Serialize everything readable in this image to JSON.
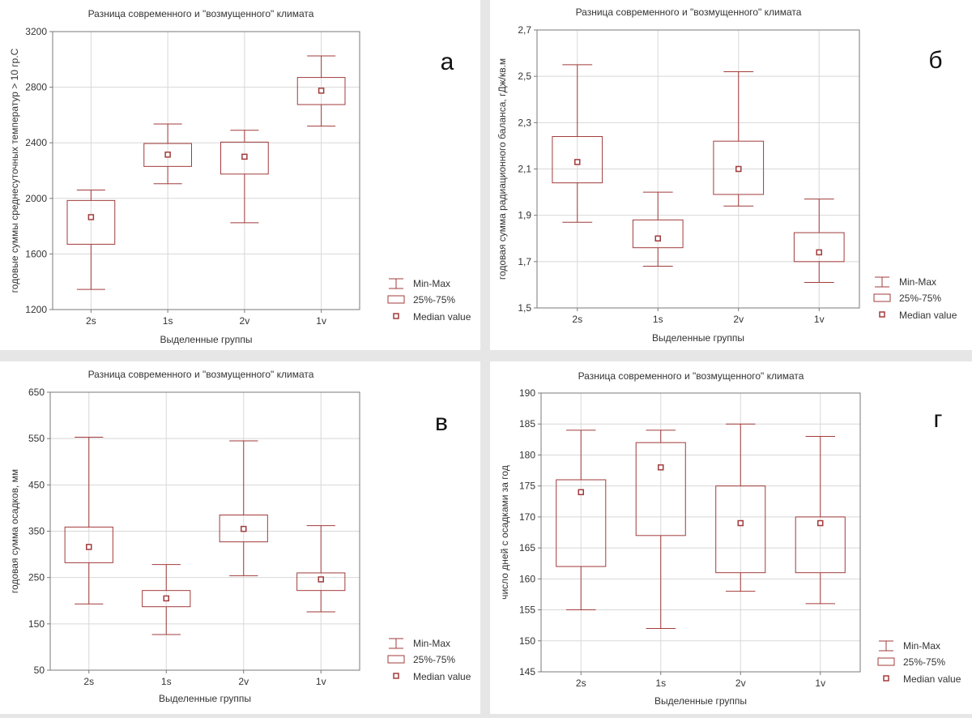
{
  "colors": {
    "box": "#a23b3b",
    "grid": "#d8d8d8",
    "frame": "#7a7a7a",
    "figure_bg": "#e6e6e6"
  },
  "legend": {
    "minmax": "Min-Max",
    "iqr": "25%-75%",
    "median": "Median value"
  },
  "chart_data": [
    {
      "type": "box",
      "letter": "а",
      "title": "Разница современного и \"возмущенного\" климата",
      "xlabel": "Выделенные группы",
      "ylabel": "годовые суммы среднесуточных температур > 10 гр.С",
      "ylim": [
        1200,
        3200
      ],
      "yticks": [
        "1200",
        "1600",
        "2000",
        "2400",
        "2800",
        "3200"
      ],
      "grid": true,
      "legend_position": "bottom-right",
      "categories": [
        "2s",
        "1s",
        "2v",
        "1v"
      ],
      "min": [
        1345,
        2105,
        1825,
        2520
      ],
      "q1": [
        1670,
        2230,
        2175,
        2675
      ],
      "median": [
        1865,
        2315,
        2300,
        2775
      ],
      "q3": [
        1985,
        2395,
        2405,
        2870
      ],
      "max": [
        2060,
        2535,
        2490,
        3025
      ]
    },
    {
      "type": "box",
      "letter": "б",
      "title": "Разница современного и \"возмущенного\" климата",
      "xlabel": "Выделенные группы",
      "ylabel": "годовая сумма радиационного баланса, гДж/кв.м",
      "ylim": [
        1.5,
        2.7
      ],
      "yticks": [
        "1,5",
        "1,7",
        "1,9",
        "2,1",
        "2,3",
        "2,5",
        "2,7"
      ],
      "grid": true,
      "legend_position": "bottom-right",
      "categories": [
        "2s",
        "1s",
        "2v",
        "1v"
      ],
      "min": [
        1.87,
        1.68,
        1.94,
        1.61
      ],
      "q1": [
        2.04,
        1.76,
        1.99,
        1.7
      ],
      "median": [
        2.13,
        1.8,
        2.1,
        1.74
      ],
      "q3": [
        2.24,
        1.88,
        2.22,
        1.825
      ],
      "max": [
        2.55,
        2.0,
        2.52,
        1.97
      ]
    },
    {
      "type": "box",
      "letter": "в",
      "title": "Разница современного и \"возмущенного\" климата",
      "xlabel": "Выделенные группы",
      "ylabel": "годовая сумма осадков, мм",
      "ylim": [
        50,
        650
      ],
      "yticks": [
        "50",
        "150",
        "250",
        "350",
        "450",
        "550",
        "650"
      ],
      "grid": true,
      "legend_position": "bottom-right",
      "categories": [
        "2s",
        "1s",
        "2v",
        "1v"
      ],
      "min": [
        193,
        127,
        254,
        176
      ],
      "q1": [
        282,
        187,
        327,
        222
      ],
      "median": [
        316,
        205,
        355,
        246
      ],
      "q3": [
        359,
        222,
        385,
        260
      ],
      "max": [
        553,
        278,
        545,
        362
      ]
    },
    {
      "type": "box",
      "letter": "г",
      "title": "Разница современного и \"возмущенного\" климата",
      "xlabel": "Выделенные группы",
      "ylabel": "число дней с осадками за год",
      "ylim": [
        145,
        190
      ],
      "yticks": [
        "145",
        "150",
        "155",
        "160",
        "165",
        "170",
        "175",
        "180",
        "185",
        "190"
      ],
      "grid": true,
      "legend_position": "bottom-right",
      "categories": [
        "2s",
        "1s",
        "2v",
        "1v"
      ],
      "min": [
        155,
        152,
        158,
        156
      ],
      "q1": [
        162,
        167,
        161,
        161
      ],
      "median": [
        174,
        178,
        169,
        169
      ],
      "q3": [
        176,
        182,
        175,
        170
      ],
      "max": [
        184,
        184,
        185,
        183
      ]
    }
  ]
}
